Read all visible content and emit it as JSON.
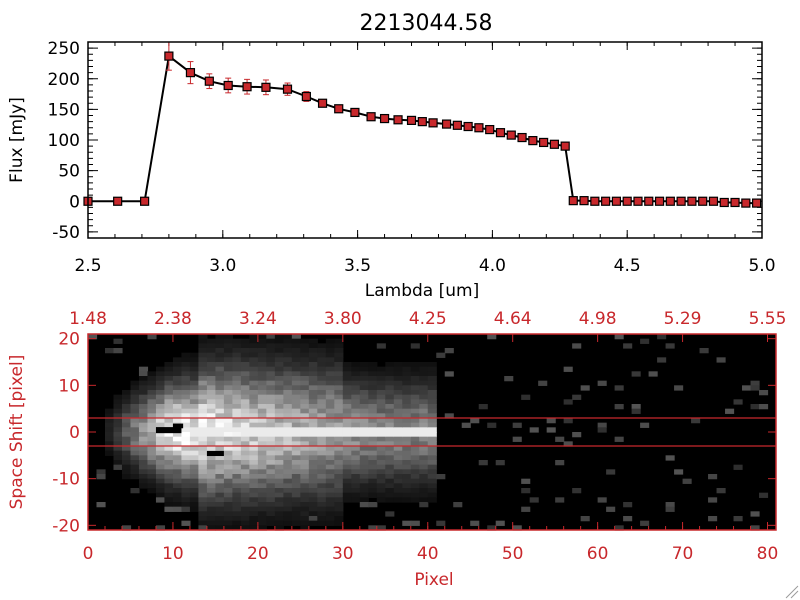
{
  "chart_data": [
    {
      "type": "line",
      "title": "2213044.58",
      "xlabel": "Lambda [um]",
      "ylabel": "Flux [mJy]",
      "xlim": [
        2.5,
        5.0
      ],
      "ylim": [
        -60,
        260
      ],
      "x_ticks": [
        "2.5",
        "3.0",
        "3.5",
        "4.0",
        "4.5",
        "5.0"
      ],
      "x_tick_values": [
        2.5,
        3.0,
        3.5,
        4.0,
        4.5,
        5.0
      ],
      "y_ticks": [
        "-50",
        "0",
        "50",
        "100",
        "150",
        "200",
        "250"
      ],
      "y_tick_values": [
        -50,
        0,
        50,
        100,
        150,
        200,
        250
      ],
      "grid": false,
      "line_color": "#000000",
      "marker_color": "#c8282c",
      "errorbar_color": "#c8282c",
      "series": [
        {
          "x": [
            2.5,
            2.61,
            2.71,
            2.8,
            2.88,
            2.95,
            3.02,
            3.09,
            3.16,
            3.24,
            3.31,
            3.37,
            3.43,
            3.49,
            3.55,
            3.6,
            3.65,
            3.7,
            3.74,
            3.78,
            3.83,
            3.87,
            3.91,
            3.95,
            3.99,
            4.03,
            4.07,
            4.11,
            4.15,
            4.19,
            4.23,
            4.27,
            4.3,
            4.34,
            4.38,
            4.42,
            4.46,
            4.5,
            4.54,
            4.58,
            4.62,
            4.66,
            4.7,
            4.74,
            4.78,
            4.82,
            4.86,
            4.9,
            4.94,
            4.98
          ],
          "y": [
            0,
            0,
            0,
            237,
            210,
            196,
            189,
            187,
            186,
            183,
            171,
            160,
            151,
            145,
            138,
            135,
            133,
            132,
            130,
            128,
            126,
            124,
            122,
            120,
            117,
            112,
            108,
            104,
            99,
            96,
            93,
            90,
            1,
            1,
            0,
            0,
            0,
            0,
            0,
            0,
            0,
            0,
            0,
            0,
            0,
            0,
            -2,
            -2,
            -3,
            -3
          ],
          "yerr": [
            0,
            0,
            0,
            23,
            18,
            12,
            12,
            12,
            12,
            10,
            8,
            5,
            4,
            3,
            3,
            3,
            3,
            2,
            2,
            2,
            2,
            2,
            2,
            2,
            2,
            2,
            2,
            2,
            2,
            2,
            2,
            2,
            2,
            2,
            2,
            2,
            2,
            2,
            2,
            2,
            2,
            2,
            2,
            2,
            2,
            2,
            2,
            2,
            2,
            2
          ]
        }
      ]
    },
    {
      "type": "heatmap",
      "xlabel": "Pixel",
      "ylabel": "Space Shift [pixel]",
      "xlim": [
        0,
        81
      ],
      "ylim": [
        -21,
        21
      ],
      "x_ticks": [
        "0",
        "10",
        "20",
        "30",
        "40",
        "50",
        "60",
        "70",
        "80"
      ],
      "x_tick_values": [
        0,
        10,
        20,
        30,
        40,
        50,
        60,
        70,
        80
      ],
      "top_ticks": [
        "1.48",
        "2.38",
        "3.24",
        "3.80",
        "4.25",
        "4.64",
        "4.98",
        "5.29",
        "5.55"
      ],
      "top_tick_positions": [
        0,
        10,
        20,
        30,
        40,
        50,
        60,
        70,
        80
      ],
      "y_ticks": [
        "-20",
        "-10",
        "0",
        "10",
        "20"
      ],
      "y_tick_values": [
        -20,
        -10,
        0,
        10,
        20
      ],
      "aperture_lines": [
        3,
        -3
      ],
      "colormap": "grayscale",
      "axis_color": "#c8282c",
      "line_color": "#c8282c"
    }
  ]
}
